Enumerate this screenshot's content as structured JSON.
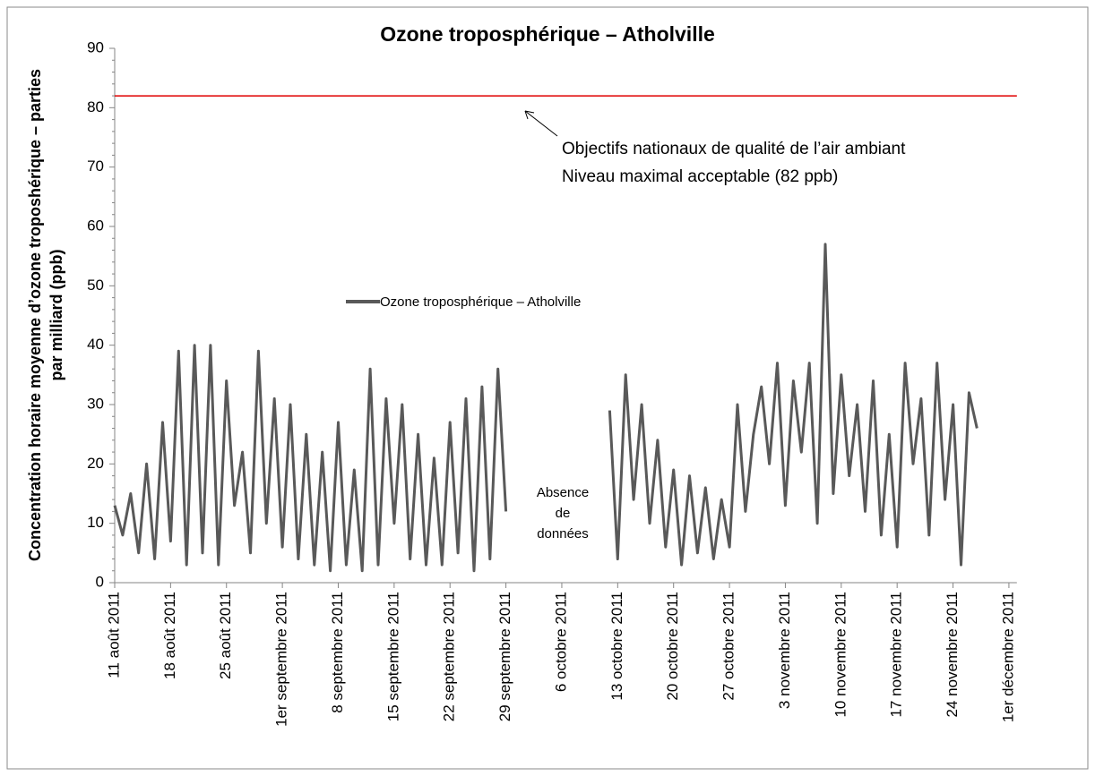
{
  "chart_data": {
    "type": "line",
    "title": "Ozone troposphérique – Atholville",
    "ylabel": [
      "Concentration horaire moyenne d’ozone troposhérique – parties",
      "par milliard (ppb)"
    ],
    "ylim": [
      0,
      90
    ],
    "yticks": [
      0,
      10,
      20,
      30,
      40,
      50,
      60,
      70,
      80,
      90
    ],
    "xlim": [
      "2011-08-11",
      "2011-12-02"
    ],
    "xticks": [
      {
        "value": "2011-08-11",
        "label": "11 août 2011"
      },
      {
        "value": "2011-08-18",
        "label": "18 août 2011"
      },
      {
        "value": "2011-08-25",
        "label": "25 août 2011"
      },
      {
        "value": "2011-09-01",
        "label": "1er septembre 2011"
      },
      {
        "value": "2011-09-08",
        "label": "8 septembre 2011"
      },
      {
        "value": "2011-09-15",
        "label": "15 septembre 2011"
      },
      {
        "value": "2011-09-22",
        "label": "22 septembre 2011"
      },
      {
        "value": "2011-09-29",
        "label": "29 septembre 2011"
      },
      {
        "value": "2011-10-06",
        "label": "6 octobre 2011"
      },
      {
        "value": "2011-10-13",
        "label": "13 octobre 2011"
      },
      {
        "value": "2011-10-20",
        "label": "20 octobre 2011"
      },
      {
        "value": "2011-10-27",
        "label": "27 octobre 2011"
      },
      {
        "value": "2011-11-03",
        "label": "3 novembre 2011"
      },
      {
        "value": "2011-11-10",
        "label": "10 novembre 2011"
      },
      {
        "value": "2011-11-17",
        "label": "17 novembre 2011"
      },
      {
        "value": "2011-11-24",
        "label": "24 novembre 2011"
      },
      {
        "value": "2011-12-01",
        "label": "1er décembre 2011"
      }
    ],
    "x": [
      "2011-08-11",
      "2011-08-12",
      "2011-08-13",
      "2011-08-14",
      "2011-08-15",
      "2011-08-16",
      "2011-08-17",
      "2011-08-18",
      "2011-08-19",
      "2011-08-20",
      "2011-08-21",
      "2011-08-22",
      "2011-08-23",
      "2011-08-24",
      "2011-08-25",
      "2011-08-26",
      "2011-08-27",
      "2011-08-28",
      "2011-08-29",
      "2011-08-30",
      "2011-08-31",
      "2011-09-01",
      "2011-09-02",
      "2011-09-03",
      "2011-09-04",
      "2011-09-05",
      "2011-09-06",
      "2011-09-07",
      "2011-09-08",
      "2011-09-09",
      "2011-09-10",
      "2011-09-11",
      "2011-09-12",
      "2011-09-13",
      "2011-09-14",
      "2011-09-15",
      "2011-09-16",
      "2011-09-17",
      "2011-09-18",
      "2011-09-19",
      "2011-09-20",
      "2011-09-21",
      "2011-09-22",
      "2011-09-23",
      "2011-09-24",
      "2011-09-25",
      "2011-09-26",
      "2011-09-27",
      "2011-09-28",
      "2011-09-29",
      "2011-09-30",
      "2011-10-01",
      "2011-10-02",
      "2011-10-03",
      "2011-10-04",
      "2011-10-05",
      "2011-10-06",
      "2011-10-07",
      "2011-10-08",
      "2011-10-09",
      "2011-10-10",
      "2011-10-11",
      "2011-10-12",
      "2011-10-13",
      "2011-10-14",
      "2011-10-15",
      "2011-10-16",
      "2011-10-17",
      "2011-10-18",
      "2011-10-19",
      "2011-10-20",
      "2011-10-21",
      "2011-10-22",
      "2011-10-23",
      "2011-10-24",
      "2011-10-25",
      "2011-10-26",
      "2011-10-27",
      "2011-10-28",
      "2011-10-29",
      "2011-10-30",
      "2011-10-31",
      "2011-11-01",
      "2011-11-02",
      "2011-11-03",
      "2011-11-04",
      "2011-11-05",
      "2011-11-06",
      "2011-11-07",
      "2011-11-08",
      "2011-11-09",
      "2011-11-10",
      "2011-11-11",
      "2011-11-12",
      "2011-11-13",
      "2011-11-14",
      "2011-11-15",
      "2011-11-16",
      "2011-11-17",
      "2011-11-18",
      "2011-11-19",
      "2011-11-20",
      "2011-11-21",
      "2011-11-22",
      "2011-11-23",
      "2011-11-24",
      "2011-11-25",
      "2011-11-26",
      "2011-11-27"
    ],
    "series": [
      {
        "name": "Ozone troposphérique  – Atholville",
        "color": "#595959",
        "values": [
          13,
          8,
          15,
          5,
          20,
          4,
          27,
          7,
          39,
          3,
          40,
          5,
          40,
          3,
          34,
          13,
          22,
          5,
          39,
          10,
          31,
          6,
          30,
          4,
          25,
          3,
          22,
          2,
          27,
          3,
          19,
          2,
          36,
          3,
          31,
          10,
          30,
          4,
          25,
          3,
          21,
          3,
          27,
          5,
          31,
          2,
          33,
          4,
          36,
          12,
          null,
          null,
          null,
          null,
          null,
          null,
          null,
          null,
          null,
          null,
          null,
          null,
          29,
          4,
          35,
          14,
          30,
          10,
          24,
          6,
          19,
          3,
          18,
          5,
          16,
          4,
          14,
          6,
          30,
          12,
          25,
          33,
          20,
          37,
          13,
          34,
          22,
          37,
          10,
          57,
          15,
          35,
          18,
          30,
          12,
          34,
          8,
          25,
          6,
          37,
          20,
          31,
          8,
          37,
          14,
          30,
          3,
          32,
          26
        ]
      }
    ],
    "reference_line": {
      "value": 82,
      "color": "#e00000"
    },
    "annotations": [
      [
        "Objectifs nationaux de qualité de l’air ambiant",
        "Niveau maximal acceptable (82 ppb)"
      ],
      [
        "Absence",
        "de",
        "données"
      ]
    ]
  }
}
